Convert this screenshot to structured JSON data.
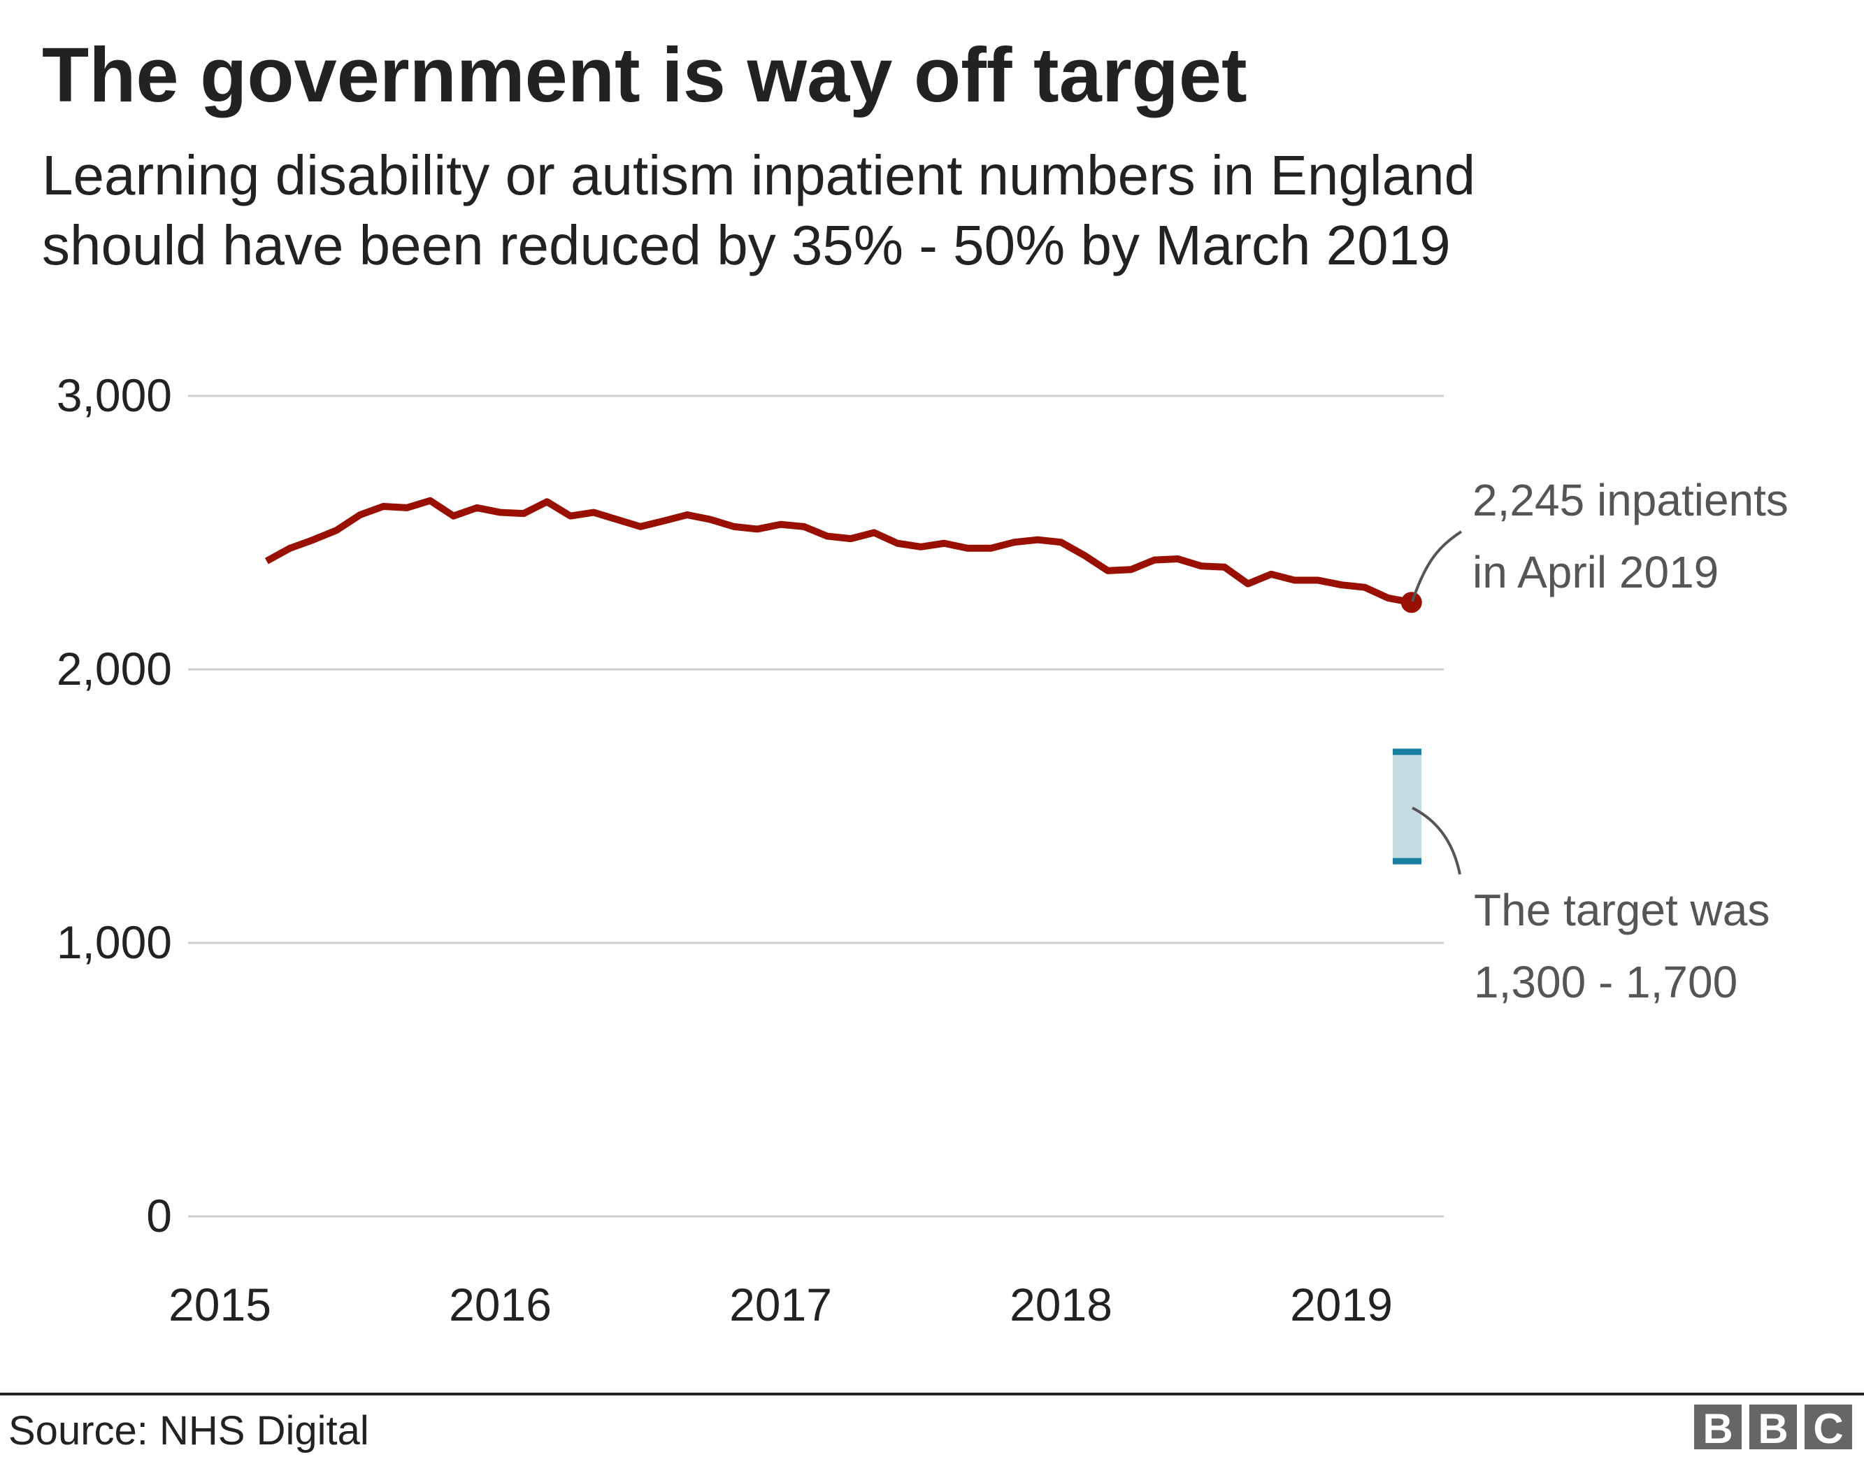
{
  "chart_data": {
    "type": "line",
    "title": "The government is way off target",
    "subtitle": [
      "Learning disability or autism inpatient numbers in England",
      "should have been reduced by 35% - 50% by March 2019"
    ],
    "xlabel": "",
    "ylabel": "",
    "ylim": [
      0,
      3000
    ],
    "y_ticks": [
      "0",
      "1,000",
      "2,000",
      "3,000"
    ],
    "y_tick_values": [
      0,
      1000,
      2000,
      3000
    ],
    "x_ticks": [
      "2015",
      "2016",
      "2017",
      "2018",
      "2019"
    ],
    "grid": true,
    "x_start": "2015-03",
    "x_end": "2019-04",
    "frequency": "monthly",
    "series": [
      {
        "color": "#990f00",
        "values": [
          2396,
          2443,
          2474,
          2509,
          2565,
          2596,
          2591,
          2617,
          2561,
          2591,
          2574,
          2570,
          2613,
          2561,
          2574,
          2548,
          2522,
          2543,
          2565,
          2548,
          2522,
          2513,
          2530,
          2522,
          2487,
          2478,
          2500,
          2461,
          2448,
          2461,
          2443,
          2443,
          2465,
          2474,
          2465,
          2417,
          2361,
          2365,
          2400,
          2404,
          2378,
          2374,
          2313,
          2348,
          2326,
          2326,
          2309,
          2300,
          2261,
          2245
        ]
      }
    ],
    "target_range": {
      "low": 1300,
      "high": 1700,
      "fill": "#c5dce3",
      "cap_color": "#1a7ea0"
    },
    "annotations": [
      {
        "lines": [
          "2,245 inpatients",
          "in April 2019"
        ]
      },
      {
        "lines": [
          "The target was",
          "1,300 - 1,700"
        ]
      }
    ]
  },
  "footer": {
    "source": "Source: NHS Digital",
    "logo": "BBC"
  }
}
